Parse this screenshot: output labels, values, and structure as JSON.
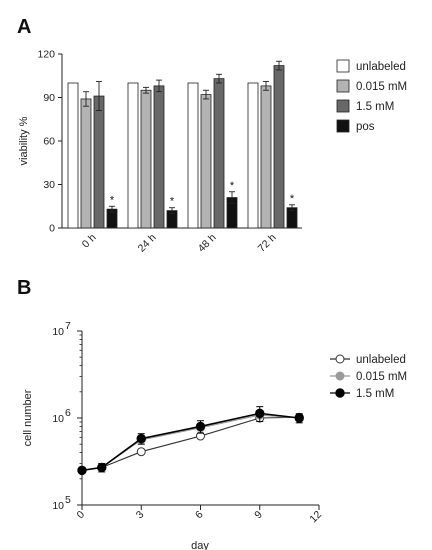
{
  "panels": {
    "a_label": "A",
    "b_label": "B"
  },
  "chart_data": [
    {
      "type": "bar",
      "panel": "A",
      "categories": [
        "0 h",
        "24 h",
        "48 h",
        "72 h"
      ],
      "ylabel": "viability %",
      "xlabel": "",
      "ylim": [
        0,
        120
      ],
      "yticks": [
        0,
        30,
        60,
        90,
        120
      ],
      "legend_position": "right",
      "series": [
        {
          "name": "unlabeled",
          "color": "#ffffff",
          "values": [
            100,
            100,
            100,
            100
          ],
          "errors": [
            0,
            0,
            0,
            0
          ]
        },
        {
          "name": "0.015 mM",
          "color": "#b3b3b3",
          "values": [
            89,
            95,
            92,
            98
          ],
          "errors": [
            5,
            2,
            3,
            3
          ]
        },
        {
          "name": "1.5 mM",
          "color": "#686868",
          "values": [
            91,
            98,
            103,
            112
          ],
          "errors": [
            10,
            4,
            3,
            3
          ]
        },
        {
          "name": "pos",
          "color": "#111111",
          "values": [
            13,
            12,
            21,
            14
          ],
          "errors": [
            2,
            2,
            4,
            2
          ]
        }
      ],
      "annotations": [
        {
          "category": "0 h",
          "series": "pos",
          "text": "*"
        },
        {
          "category": "24 h",
          "series": "pos",
          "text": "*"
        },
        {
          "category": "48 h",
          "series": "pos",
          "text": "*"
        },
        {
          "category": "72 h",
          "series": "pos",
          "text": "*"
        }
      ]
    },
    {
      "type": "line",
      "panel": "B",
      "xlabel": "day",
      "ylabel": "cell number",
      "xlim": [
        0,
        12
      ],
      "xticks": [
        0,
        3,
        6,
        9,
        12
      ],
      "yscale": "log",
      "ylim": [
        100000,
        10000000
      ],
      "yticks": [
        {
          "value": 100000,
          "base": "10",
          "exp": "5"
        },
        {
          "value": 1000000,
          "base": "10",
          "exp": "6"
        },
        {
          "value": 10000000,
          "base": "10",
          "exp": "7"
        }
      ],
      "legend_position": "right",
      "series": [
        {
          "name": "unlabeled",
          "marker": "open-circle",
          "color": "#333333",
          "x": [
            0,
            1,
            3,
            6,
            9,
            11
          ],
          "y": [
            250000,
            270000,
            410000,
            620000,
            1000000,
            1020000
          ],
          "errors": [
            0,
            0,
            0,
            0,
            0,
            0
          ]
        },
        {
          "name": "0.015 mM",
          "marker": "gray-circle",
          "color": "#9a9a9a",
          "x": [
            0,
            1,
            3,
            6,
            9,
            11
          ],
          "y": [
            250000,
            270000,
            560000,
            770000,
            1080000,
            1000000
          ],
          "errors": [
            0,
            0,
            0,
            0,
            0,
            0
          ]
        },
        {
          "name": "1.5 mM",
          "marker": "filled-circle",
          "color": "#000000",
          "x": [
            0,
            1,
            3,
            6,
            9,
            11
          ],
          "y": [
            250000,
            270000,
            580000,
            800000,
            1130000,
            1000000
          ],
          "errors": [
            0,
            30000,
            80000,
            130000,
            220000,
            120000
          ]
        }
      ]
    }
  ]
}
